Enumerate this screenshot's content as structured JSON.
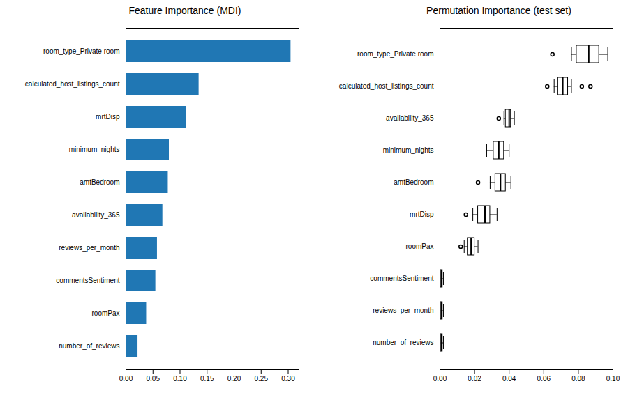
{
  "chart_data": [
    {
      "type": "bar",
      "title": "Feature Importance (MDI)",
      "orientation": "horizontal",
      "categories": [
        "number_of_reviews",
        "roomPax",
        "commentsSentiment",
        "reviews_per_month",
        "availability_365",
        "amtBedroom",
        "minimum_nights",
        "mrtDisp",
        "calculated_host_listings_count",
        "room_type_Private room"
      ],
      "values": [
        0.022,
        0.038,
        0.055,
        0.058,
        0.068,
        0.078,
        0.08,
        0.112,
        0.135,
        0.305
      ],
      "color": "#2077b4",
      "xlim": [
        0,
        0.32
      ],
      "xticks": [
        {
          "value": 0,
          "label": "0.00"
        },
        0.05,
        {
          "value": 0.1,
          "label": "0.10"
        },
        0.15,
        {
          "value": 0.2,
          "label": "0.20"
        },
        0.25,
        {
          "value": 0.3,
          "label": "0.30"
        }
      ],
      "grid": false
    },
    {
      "type": "box",
      "title": "Permutation Importance (test set)",
      "orientation": "horizontal",
      "categories": [
        "number_of_reviews",
        "reviews_per_month",
        "commentsSentiment",
        "roomPax",
        "mrtDisp",
        "amtBedroom",
        "minimum_nights",
        "availability_365",
        "calculated_host_listings_count",
        "room_type_Private room"
      ],
      "q1": [
        0.0005,
        0.0005,
        0.0005,
        0.016,
        0.022,
        0.032,
        0.031,
        0.038,
        0.068,
        0.079
      ],
      "median": [
        0.001,
        0.001,
        0.001,
        0.018,
        0.026,
        0.035,
        0.034,
        0.04,
        0.071,
        0.086
      ],
      "q3": [
        0.0015,
        0.0015,
        0.0015,
        0.02,
        0.029,
        0.038,
        0.037,
        0.041,
        0.074,
        0.092
      ],
      "whislo": [
        0.0,
        0.0,
        0.0,
        0.014,
        0.019,
        0.029,
        0.027,
        0.037,
        0.066,
        0.076
      ],
      "whishi": [
        0.002,
        0.002,
        0.002,
        0.022,
        0.033,
        0.041,
        0.04,
        0.043,
        0.076,
        0.097
      ],
      "fliers": [
        [],
        [],
        [],
        [
          0.012
        ],
        [
          0.015
        ],
        [
          0.022
        ],
        [],
        [
          0.034
        ],
        [
          0.062,
          0.082,
          0.087
        ],
        [
          0.065
        ]
      ],
      "xlim": [
        0.0,
        0.1
      ],
      "xticks": [
        {
          "value": 0,
          "label": "0.00"
        },
        0.02,
        0.04,
        0.06,
        0.08,
        {
          "value": 0.1,
          "label": "0.10"
        }
      ],
      "grid": false
    }
  ]
}
